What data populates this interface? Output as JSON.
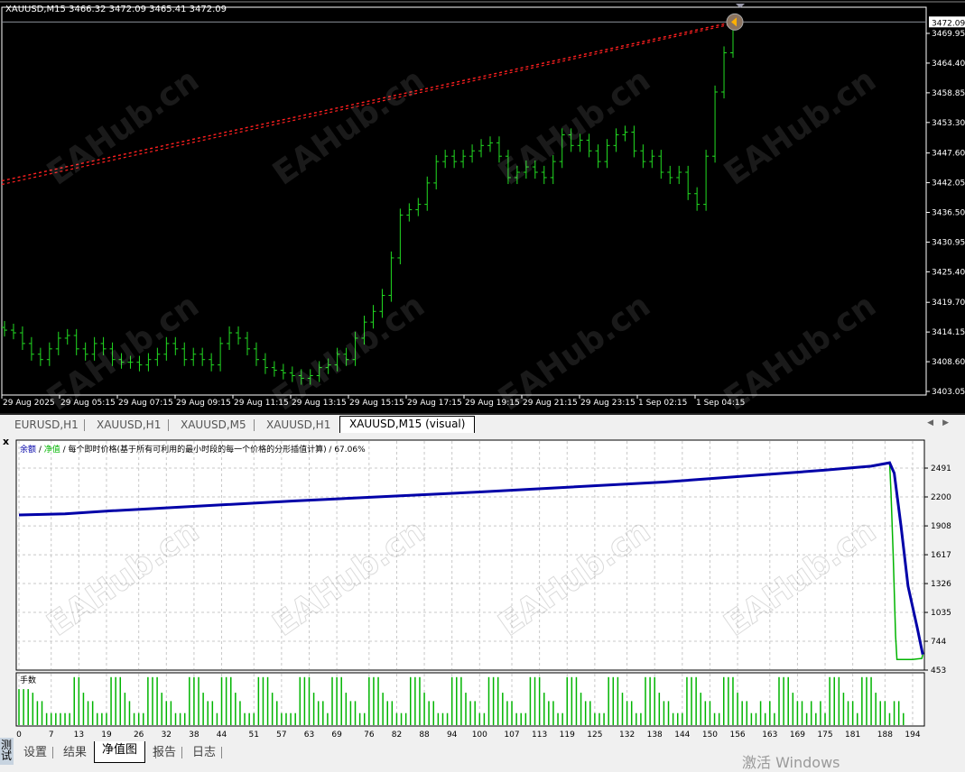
{
  "window": {
    "chart_header": "XAUUSD,M15  3466.32 3472.09 3465.41 3472.09",
    "watermark": "EAHub.cn",
    "os_watermark": "激活 Windows"
  },
  "colors": {
    "bar": "#22dd22",
    "trendline": "#ff2020",
    "balance": "#0000a8",
    "equity": "#00b400",
    "lots": "#00b400",
    "chart_bg": "#000000"
  },
  "chart_tabs": [
    {
      "label": "EURUSD,H1",
      "active": false
    },
    {
      "label": "XAUUSD,H1",
      "active": false
    },
    {
      "label": "XAUUSD,M5",
      "active": false
    },
    {
      "label": "XAUUSD,H1",
      "active": false
    },
    {
      "label": "XAUUSD,M15 (visual)",
      "active": true
    }
  ],
  "tester": {
    "close_label": "x",
    "side_label": "测试",
    "legend": {
      "balance": "余额",
      "slash1": " / ",
      "equity": "净值",
      "rest": " / 每个即时价格(基于所有可利用的最小时段的每一个价格的分形插值计算) / 67.06%"
    },
    "lots_label": "手数",
    "bottom_tabs": [
      {
        "label": "设置",
        "active": false
      },
      {
        "label": "结果",
        "active": false
      },
      {
        "label": "净值图",
        "active": true
      },
      {
        "label": "报告",
        "active": false
      },
      {
        "label": "日志",
        "active": false
      }
    ]
  },
  "chart_data": [
    {
      "type": "ohlc",
      "symbol": "XAUUSD,M15",
      "last_bar": {
        "open": 3466.32,
        "high": 3472.09,
        "low": 3465.41,
        "close": 3472.09
      },
      "current_price": "3472.09",
      "y_ticks": [
        "3469.95",
        "3464.40",
        "3458.85",
        "3453.30",
        "3447.60",
        "3442.05",
        "3436.50",
        "3430.95",
        "3425.40",
        "3419.70",
        "3414.15",
        "3408.60",
        "3403.05"
      ],
      "ylim": [
        3403.05,
        3472.09
      ],
      "x_ticks": [
        "29 Aug 2025",
        "29 Aug 05:15",
        "29 Aug 07:15",
        "29 Aug 09:15",
        "29 Aug 11:15",
        "29 Aug 13:15",
        "29 Aug 15:15",
        "29 Aug 17:15",
        "29 Aug 19:15",
        "29 Aug 21:15",
        "29 Aug 23:15",
        "1 Sep 02:15",
        "1 Sep 04:15"
      ],
      "closes": [
        3414.5,
        3414,
        3412,
        3410,
        3409,
        3411,
        3413,
        3413.5,
        3411,
        3410,
        3412,
        3411,
        3409,
        3408.5,
        3408.5,
        3408,
        3409,
        3410,
        3412,
        3411,
        3409,
        3410,
        3409,
        3408,
        3412,
        3414,
        3413,
        3411,
        3409,
        3407.5,
        3407,
        3406.5,
        3406,
        3405.5,
        3406,
        3407.5,
        3408,
        3410,
        3409,
        3413,
        3416,
        3418,
        3421,
        3428,
        3436,
        3437,
        3438,
        3442,
        3446,
        3447,
        3446,
        3447,
        3448,
        3449,
        3449.5,
        3447,
        3443,
        3444,
        3445,
        3444,
        3443,
        3446,
        3451,
        3449,
        3450,
        3448,
        3446,
        3449,
        3451,
        3451.5,
        3448,
        3446,
        3447,
        3444,
        3443,
        3444,
        3440,
        3438,
        3447,
        3459,
        3466.32,
        3472.09
      ],
      "trendline": {
        "from": 3442.4,
        "to": 3472.0
      }
    },
    {
      "type": "line",
      "y_ticks": [
        2491,
        2200,
        1908,
        1617,
        1326,
        1035,
        744,
        453
      ],
      "ylim": [
        453,
        2700
      ],
      "x_ticks": [
        0,
        7,
        13,
        19,
        26,
        32,
        38,
        44,
        51,
        57,
        63,
        69,
        76,
        82,
        88,
        94,
        100,
        107,
        113,
        119,
        125,
        132,
        138,
        144,
        150,
        156,
        163,
        169,
        175,
        181,
        188,
        194
      ],
      "xlim": [
        0,
        197
      ],
      "grid": true,
      "series": [
        {
          "name": "余额",
          "points": [
            [
              0,
              2018
            ],
            [
              10,
              2030
            ],
            [
              20,
              2060
            ],
            [
              60,
              2160
            ],
            [
              100,
              2250
            ],
            [
              140,
              2350
            ],
            [
              175,
              2470
            ],
            [
              185,
              2510
            ],
            [
              189,
              2545
            ],
            [
              190,
              2440
            ],
            [
              191.5,
              1900
            ],
            [
              193,
              1300
            ],
            [
              195,
              880
            ],
            [
              196.2,
              610
            ]
          ]
        },
        {
          "name": "净值",
          "points": [
            [
              0,
              2018
            ],
            [
              10,
              2030
            ],
            [
              20,
              2060
            ],
            [
              60,
              2160
            ],
            [
              100,
              2250
            ],
            [
              140,
              2350
            ],
            [
              175,
              2470
            ],
            [
              185,
              2510
            ],
            [
              189,
              2545
            ],
            [
              189.3,
              2250
            ],
            [
              189.8,
              1600
            ],
            [
              190.3,
              800
            ],
            [
              190.6,
              560
            ],
            [
              194,
              560
            ],
            [
              196,
              570
            ],
            [
              196.2,
              610
            ]
          ]
        }
      ]
    },
    {
      "type": "bar",
      "label": "手数",
      "values": [
        3,
        3,
        3,
        2.7,
        2,
        2,
        1,
        1,
        1,
        1,
        1,
        1,
        4,
        4,
        2.7,
        2,
        2,
        1,
        1,
        1,
        4,
        4,
        4,
        2.7,
        2,
        1,
        1,
        1,
        4,
        4,
        4,
        2.7,
        2,
        2,
        1,
        1,
        1,
        4,
        4,
        4,
        2.7,
        2,
        2,
        1,
        4,
        4,
        4,
        2.7,
        2,
        1,
        1,
        1,
        4,
        4,
        4,
        2.7,
        2,
        1,
        1,
        1,
        1,
        4,
        4,
        4,
        2.7,
        2,
        2,
        1,
        4,
        4,
        4,
        2.7,
        2,
        2,
        1,
        1,
        4,
        4,
        4,
        2.7,
        2,
        2,
        1,
        1,
        1,
        4,
        4,
        4,
        2.7,
        2,
        2,
        1,
        1,
        1,
        4,
        4,
        4,
        2.7,
        2,
        2,
        1,
        1,
        4,
        4,
        4,
        2.7,
        2,
        2,
        1,
        1,
        1,
        4,
        4,
        4,
        2.7,
        2,
        2,
        1,
        1,
        4,
        4,
        4,
        2.7,
        2,
        2,
        1,
        1,
        1,
        4,
        4,
        4,
        2.7,
        2,
        2,
        1,
        1,
        4,
        4,
        4,
        2.7,
        2,
        2,
        1,
        1,
        1,
        4,
        4,
        4,
        2.7,
        2,
        2,
        1,
        1,
        4,
        4,
        4,
        2.7,
        2,
        2,
        1,
        1,
        2,
        1,
        2,
        1,
        4,
        4,
        4,
        2.7,
        2,
        2,
        1,
        2,
        1,
        2,
        1,
        4,
        4,
        4,
        2.7,
        2,
        2,
        1,
        4,
        4,
        4,
        2.7,
        2,
        2,
        1,
        2,
        2,
        1
      ]
    }
  ]
}
